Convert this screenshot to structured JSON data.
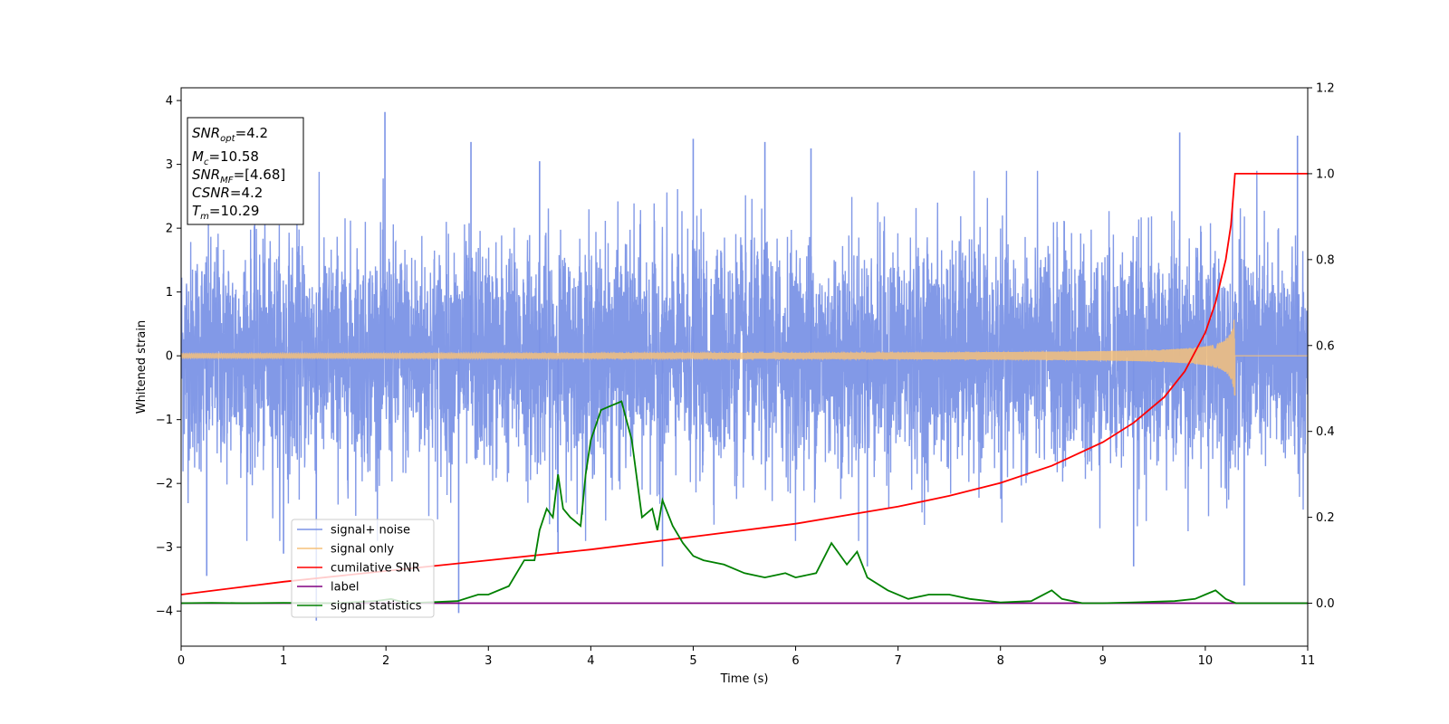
{
  "chart_data": {
    "type": "line",
    "xlabel": "Time (s)",
    "ylabel": "Whitened strain",
    "xlim": [
      0,
      11
    ],
    "ylim": [
      -4.55,
      4.2
    ],
    "y2lim": [
      -0.1,
      1.2
    ],
    "xticks": [
      0,
      1,
      2,
      3,
      4,
      5,
      6,
      7,
      8,
      9,
      10,
      11
    ],
    "yticks": [
      -4,
      -3,
      -2,
      -1,
      0,
      1,
      2,
      3,
      4
    ],
    "y2ticks": [
      0.0,
      0.2,
      0.4,
      0.6,
      0.8,
      1.0,
      1.2
    ],
    "legend_position": "lower-left",
    "info_box": {
      "snr_opt": {
        "base": "SNR",
        "sub": "opt",
        "value": "=4.2"
      },
      "mc": {
        "base": "M",
        "sub": "c",
        "value": "=10.58"
      },
      "snr_mf": {
        "base": "SNR",
        "sub": "MF",
        "value": "=[4.68]"
      },
      "csnr": {
        "base": "CSNR",
        "sub": "",
        "value": "=4.2"
      },
      "tm": {
        "base": "T",
        "sub": "m",
        "value": "=10.29"
      }
    },
    "series": [
      {
        "name": "signal+ noise",
        "axis": "left",
        "color": "#7b93e6",
        "kind": "noise",
        "envelope_typical": 1.6,
        "peak_spikes": [
          {
            "x": 0.25,
            "y": -3.45
          },
          {
            "x": 1.0,
            "y": -3.1
          },
          {
            "x": 1.32,
            "y": -4.15
          },
          {
            "x": 1.99,
            "y": 3.82
          },
          {
            "x": 2.71,
            "y": -4.03
          },
          {
            "x": 2.83,
            "y": 3.35
          },
          {
            "x": 3.5,
            "y": 3.05
          },
          {
            "x": 3.68,
            "y": -3.1
          },
          {
            "x": 4.7,
            "y": -3.3
          },
          {
            "x": 5.0,
            "y": 3.4
          },
          {
            "x": 5.7,
            "y": 3.35
          },
          {
            "x": 6.15,
            "y": 3.25
          },
          {
            "x": 6.7,
            "y": -3.3
          },
          {
            "x": 9.3,
            "y": -3.3
          },
          {
            "x": 9.75,
            "y": 3.5
          },
          {
            "x": 10.38,
            "y": -3.6
          },
          {
            "x": 10.9,
            "y": 3.45
          }
        ]
      },
      {
        "name": "signal only",
        "axis": "left",
        "color": "#f5c07a",
        "kind": "chirp",
        "merger_time": 10.29,
        "peak_amplitude": 0.68
      },
      {
        "name": "cumilative SNR",
        "axis": "right",
        "color": "#ff0000",
        "x": [
          0,
          1,
          2,
          3,
          4,
          5,
          6,
          7,
          7.5,
          8,
          8.5,
          9,
          9.3,
          9.6,
          9.8,
          10.0,
          10.1,
          10.2,
          10.25,
          10.29,
          11
        ],
        "values": [
          0.02,
          0.05,
          0.075,
          0.1,
          0.125,
          0.155,
          0.185,
          0.225,
          0.25,
          0.28,
          0.32,
          0.375,
          0.42,
          0.48,
          0.54,
          0.63,
          0.7,
          0.8,
          0.88,
          1.0,
          1.0
        ]
      },
      {
        "name": "label",
        "axis": "right",
        "color": "#800080",
        "x": [
          0,
          11
        ],
        "values": [
          0.0,
          0.0
        ]
      },
      {
        "name": "signal statistics",
        "axis": "right",
        "color": "#008000",
        "x": [
          0,
          0.3,
          0.6,
          1.0,
          1.5,
          1.9,
          2.05,
          2.2,
          2.5,
          2.7,
          2.9,
          3.0,
          3.2,
          3.35,
          3.45,
          3.5,
          3.57,
          3.63,
          3.68,
          3.73,
          3.8,
          3.9,
          3.95,
          4.0,
          4.1,
          4.2,
          4.3,
          4.4,
          4.5,
          4.6,
          4.65,
          4.7,
          4.8,
          4.9,
          5.0,
          5.1,
          5.3,
          5.5,
          5.7,
          5.9,
          6.0,
          6.2,
          6.35,
          6.5,
          6.6,
          6.7,
          6.9,
          7.1,
          7.3,
          7.5,
          7.7,
          8.0,
          8.3,
          8.5,
          8.6,
          8.8,
          9.0,
          9.3,
          9.7,
          9.9,
          10.0,
          10.1,
          10.2,
          10.3,
          10.6,
          11.0
        ],
        "values": [
          0.0,
          0.001,
          0.0,
          0.001,
          0.0,
          0.005,
          0.01,
          0.0,
          0.003,
          0.005,
          0.02,
          0.02,
          0.04,
          0.1,
          0.1,
          0.17,
          0.22,
          0.2,
          0.3,
          0.22,
          0.2,
          0.18,
          0.3,
          0.38,
          0.45,
          0.46,
          0.47,
          0.38,
          0.2,
          0.22,
          0.17,
          0.24,
          0.18,
          0.14,
          0.11,
          0.1,
          0.09,
          0.07,
          0.06,
          0.07,
          0.06,
          0.07,
          0.14,
          0.09,
          0.12,
          0.06,
          0.03,
          0.01,
          0.02,
          0.02,
          0.01,
          0.002,
          0.005,
          0.03,
          0.01,
          0.0,
          0.0,
          0.002,
          0.005,
          0.01,
          0.02,
          0.03,
          0.01,
          0.0,
          0.0,
          0.0
        ]
      }
    ]
  }
}
